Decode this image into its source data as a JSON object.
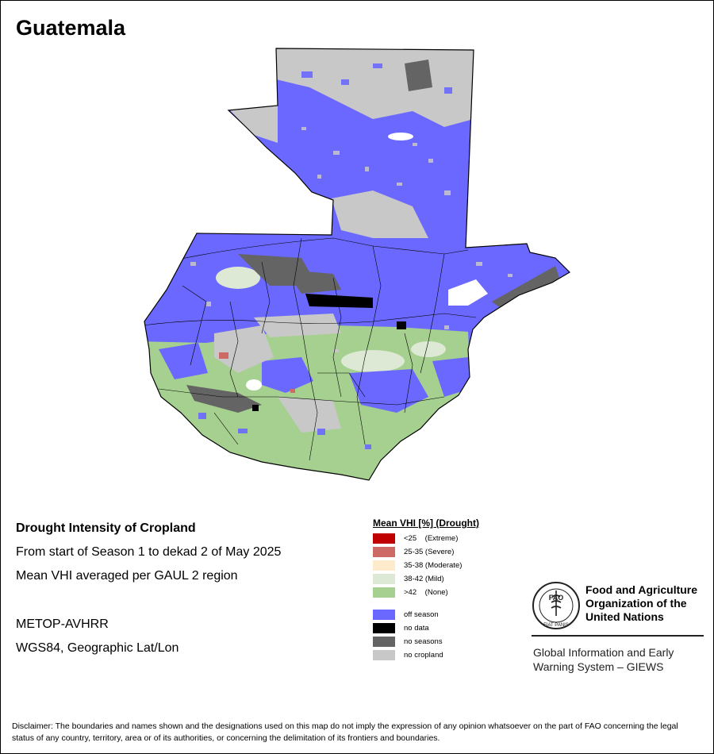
{
  "map": {
    "title": "Guatemala",
    "info_title": "Drought Intensity of Cropland",
    "info_lines": [
      "From start of Season 1 to dekad 2 of May 2025",
      "Mean VHI averaged per GAUL 2 region",
      "METOP-AVHRR",
      "WGS84, Geographic Lat/Lon"
    ],
    "legend": {
      "title": "Mean VHI [%] (Drought)",
      "items": [
        {
          "label": "<25    (Extreme)",
          "color": "#c00000"
        },
        {
          "label": "25-35 (Severe)",
          "color": "#cd6a66"
        },
        {
          "label": "35-38 (Moderate)",
          "color": "#fdebcb"
        },
        {
          "label": "38-42 (Mild)",
          "color": "#dde9d4"
        },
        {
          "label": ">42    (None)",
          "color": "#a6d08f"
        },
        {
          "label": "off season",
          "color": "#6b68ff"
        },
        {
          "label": "no data",
          "color": "#000000"
        },
        {
          "label": "no seasons",
          "color": "#646464"
        },
        {
          "label": "no cropland",
          "color": "#c8c8c8"
        }
      ]
    }
  },
  "organization": {
    "logo_text": "FAO",
    "logo_motto": "FIAT PANIS",
    "name_lines": [
      "Food and Agriculture",
      "Organization of the",
      "United Nations"
    ],
    "giews_lines": [
      "Global Information and Early",
      "Warning System – GIEWS"
    ]
  },
  "disclaimer": "Disclaimer: The boundaries and names shown and the designations used on this map do not imply the expression of any opinion whatsoever on the part of FAO concerning the legal status of any country, territory, area or of its authorities, or concerning the delimitation of its frontiers and boundaries."
}
